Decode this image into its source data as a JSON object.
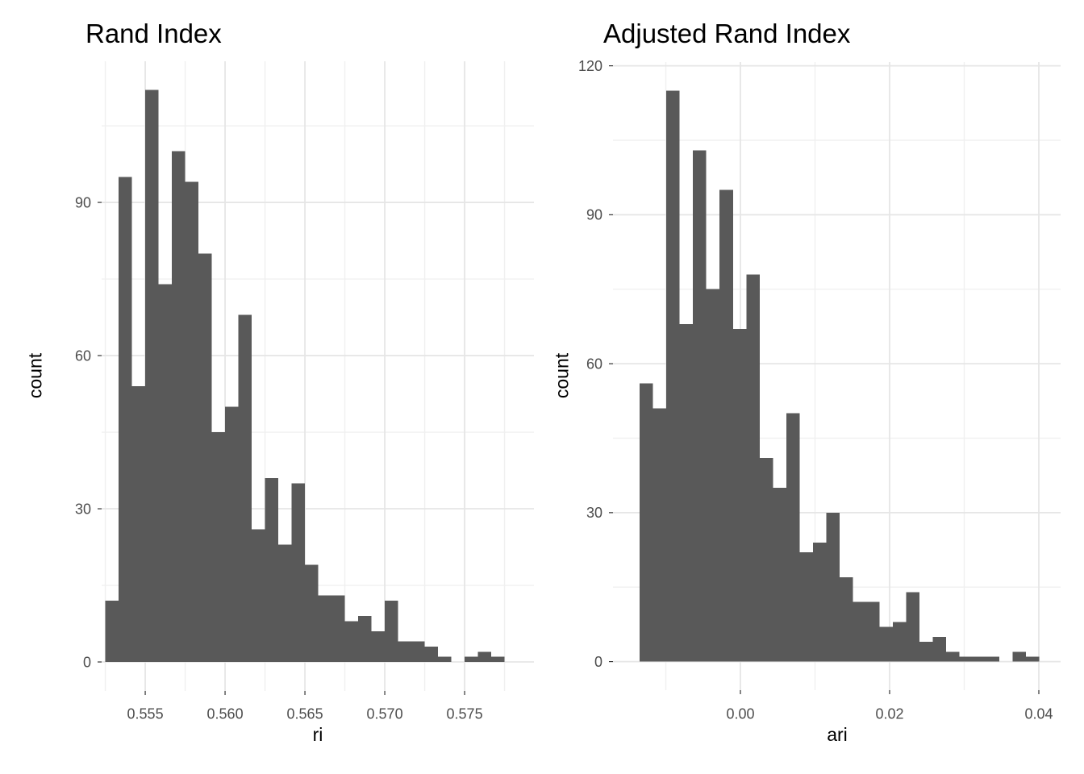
{
  "figure": {
    "background": "#ffffff",
    "description_note": "Two side-by-side histograms of clustering agreement indices"
  },
  "style": {
    "bar_fill": "#595959",
    "grid_major_color": "#e6e6e6",
    "grid_minor_color": "#f0f0f0",
    "tick_mark_color": "#333333",
    "axis_text_color": "#4d4d4d",
    "title_color": "#000000",
    "axis_title_color": "#000000"
  },
  "chart_data": [
    {
      "type": "bar",
      "subtype": "histogram",
      "title": "Rand Index",
      "xlabel": "ri",
      "ylabel": "count",
      "bin_start": 0.5525,
      "bin_width": 0.0008333,
      "counts": [
        12,
        95,
        54,
        112,
        74,
        100,
        94,
        80,
        45,
        50,
        68,
        26,
        36,
        23,
        35,
        19,
        13,
        13,
        8,
        9,
        6,
        12,
        4,
        4,
        3,
        1,
        0,
        1,
        2,
        1
      ],
      "total_n": 1000,
      "x_major": {
        "values": [
          0.555,
          0.56,
          0.565,
          0.57,
          0.575
        ],
        "labels": [
          "0.555",
          "0.560",
          "0.565",
          "0.570",
          "0.575"
        ]
      },
      "x_minor": [
        0.5525,
        0.5575,
        0.5625,
        0.5675,
        0.5725,
        0.5775
      ],
      "y_major": {
        "values": [
          0,
          30,
          60,
          90
        ],
        "labels": [
          "0",
          "30",
          "60",
          "90"
        ]
      },
      "y_minor": [
        15,
        45,
        75,
        105
      ],
      "xlim": [
        0.55227,
        0.57934
      ],
      "ylim": [
        -5.68,
        117.64
      ],
      "grid": true,
      "legend": "none"
    },
    {
      "type": "bar",
      "subtype": "histogram",
      "title": "Adjusted Rand Index",
      "xlabel": "ari",
      "ylabel": "count",
      "bin_start": -0.0135,
      "bin_width": 0.001786,
      "counts": [
        56,
        51,
        115,
        68,
        103,
        75,
        95,
        67,
        78,
        41,
        35,
        50,
        22,
        24,
        30,
        17,
        12,
        12,
        7,
        8,
        14,
        4,
        5,
        2,
        1,
        1,
        1,
        0,
        2,
        1
      ],
      "total_n": 1000,
      "x_major": {
        "values": [
          0.0,
          0.02,
          0.04
        ],
        "labels": [
          "0.00",
          "0.02",
          "0.04"
        ]
      },
      "x_minor": [
        -0.01,
        0.01,
        0.03
      ],
      "y_major": {
        "values": [
          0,
          30,
          60,
          90,
          120
        ],
        "labels": [
          "0",
          "30",
          "60",
          "90",
          "120"
        ]
      },
      "y_minor": [
        15,
        45,
        75,
        105
      ],
      "xlim": [
        -0.01708,
        0.04292
      ],
      "ylim": [
        -5.75,
        120.75
      ],
      "grid": true,
      "legend": "none"
    }
  ]
}
